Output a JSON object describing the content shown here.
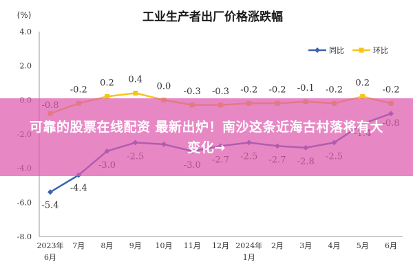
{
  "chart_data": {
    "type": "line",
    "title": "工业生产者出厂价格涨跌幅",
    "ylabel": "(%)",
    "ylim": [
      -8.0,
      4.0
    ],
    "y_ticks": [
      "4.0",
      "2.0",
      "0.0",
      "-2.0",
      "-4.0",
      "-6.0",
      "-8.0"
    ],
    "categories": [
      [
        "2023年",
        "6月"
      ],
      [
        "7月"
      ],
      [
        "8月"
      ],
      [
        "9月"
      ],
      [
        "10月"
      ],
      [
        "11月"
      ],
      [
        "12月"
      ],
      [
        "2024年",
        "1月"
      ],
      [
        "2月"
      ],
      [
        "3月"
      ],
      [
        "4月"
      ],
      [
        "5月"
      ],
      [
        "6月"
      ]
    ],
    "series": [
      {
        "name": "同比",
        "color": "#3a63ad",
        "values": [
          -5.4,
          -4.4,
          -3.0,
          -2.5,
          -2.6,
          -3.0,
          -2.7,
          -2.5,
          -2.7,
          -2.8,
          -2.5,
          -1.4,
          -0.8
        ],
        "labels": [
          "-5.4",
          "-4.4",
          "-3.0",
          "-2.5",
          "",
          "-3.0",
          "-2.7",
          "-2.5",
          "-2.7",
          "-2.8",
          "-2.5",
          "-1.4",
          "-0.8"
        ]
      },
      {
        "name": "环比",
        "color": "#f5c518",
        "values": [
          -0.8,
          -0.2,
          0.2,
          0.4,
          0.0,
          -0.3,
          -0.3,
          -0.2,
          -0.2,
          -0.1,
          -0.2,
          0.2,
          -0.2
        ],
        "labels": [
          "-0.8",
          "-0.2",
          "0.2",
          "0.4",
          "0.0",
          "-0.3",
          "-0.3",
          "-0.2",
          "-0.2",
          "-0.1",
          "-0.2",
          "0.2",
          "-0.2"
        ]
      }
    ],
    "legend": "top-right",
    "grid": false
  },
  "banner": {
    "text": "可靠的股票在线配资 最新出炉！南沙这条近海古村落将有大变化→",
    "color": "#de5aaf"
  }
}
